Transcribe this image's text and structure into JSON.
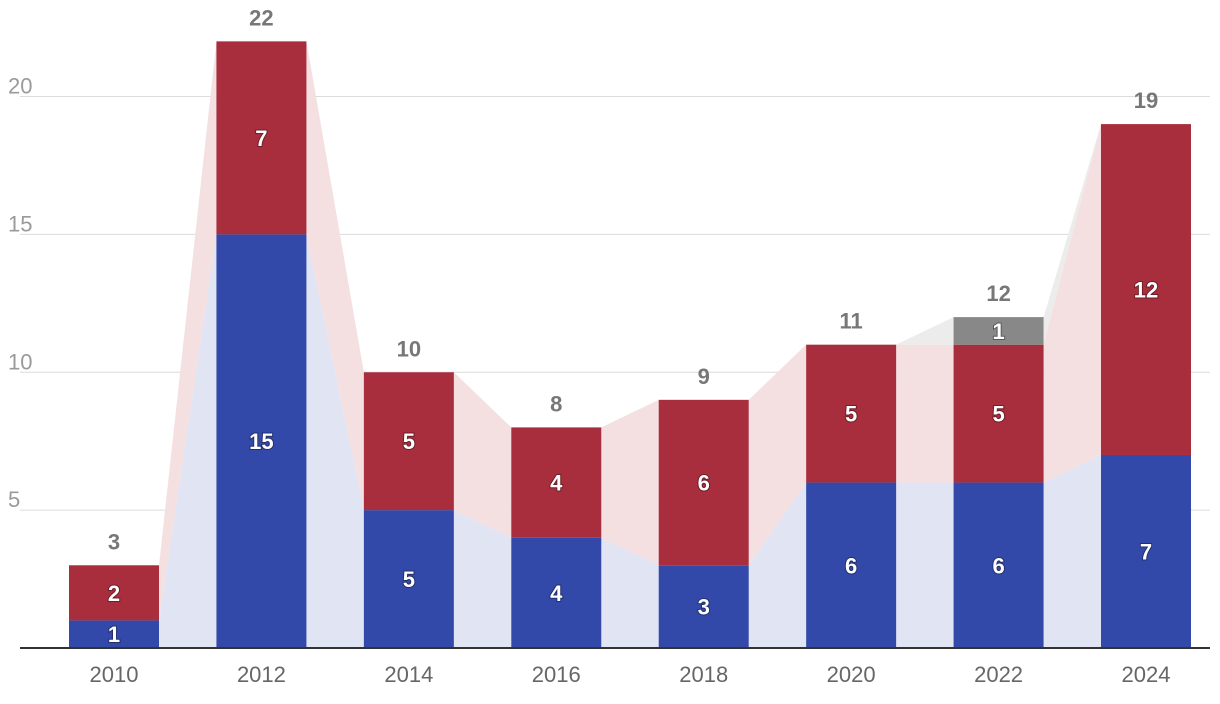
{
  "chart_data": {
    "type": "bar",
    "stacked": true,
    "title": "",
    "xlabel": "",
    "ylabel": "",
    "ylim": [
      0,
      23.5
    ],
    "yticks": [
      5,
      10,
      15,
      20
    ],
    "grid": true,
    "legend": "none",
    "categories": [
      "2010",
      "2012",
      "2014",
      "2016",
      "2018",
      "2020",
      "2022",
      "2024"
    ],
    "series": [
      {
        "name": "Blue",
        "color": "#3349a9",
        "band_color": "#e1e4f3",
        "values": [
          1,
          15,
          5,
          4,
          3,
          6,
          6,
          7
        ]
      },
      {
        "name": "Red",
        "color": "#a82e3d",
        "band_color": "#f4dfe1",
        "values": [
          2,
          7,
          5,
          4,
          6,
          5,
          5,
          12
        ]
      },
      {
        "name": "Gray",
        "color": "#888888",
        "band_color": "#ececec",
        "values": [
          0,
          0,
          0,
          0,
          0,
          0,
          1,
          0
        ]
      }
    ],
    "totals": [
      3,
      22,
      10,
      8,
      9,
      11,
      12,
      19
    ]
  }
}
